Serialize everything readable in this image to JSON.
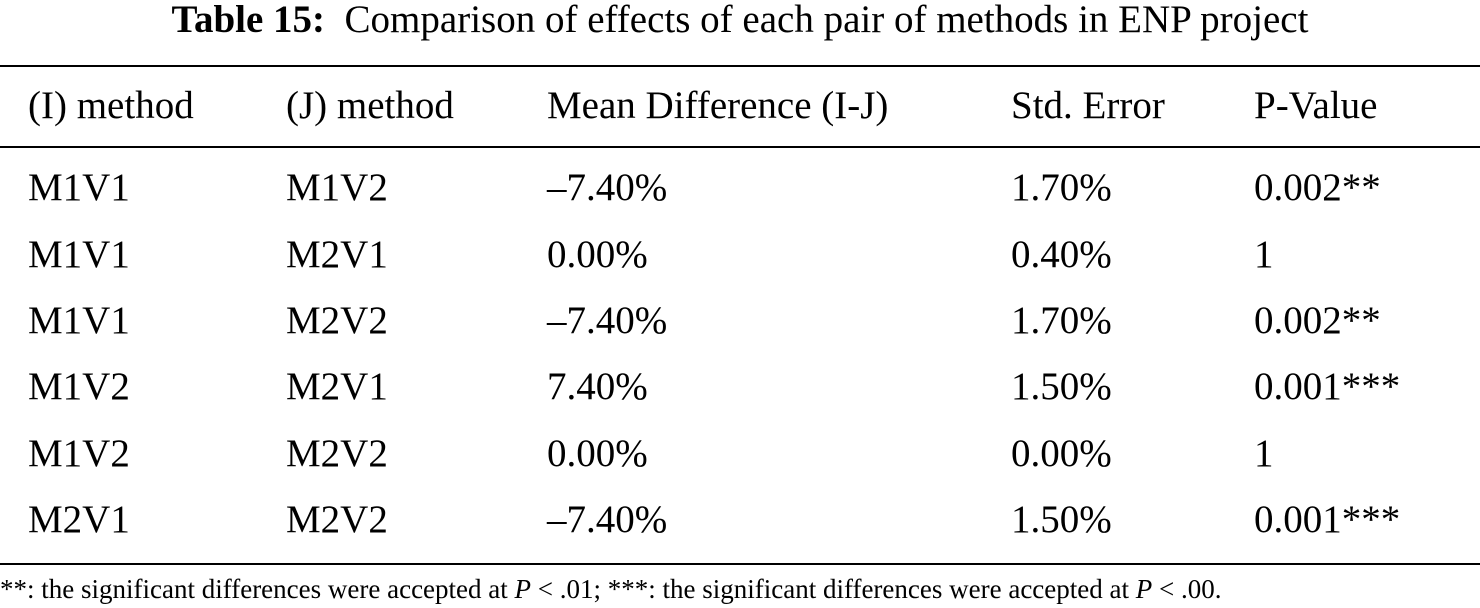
{
  "caption": {
    "label": "Table 15:",
    "text": "Comparison of effects of each pair of methods in ENP project"
  },
  "table": {
    "headers": [
      "(I) method",
      "(J) method",
      "Mean Difference (I-J)",
      "Std. Error",
      "P-Value"
    ],
    "rows": [
      [
        "M1V1",
        "M1V2",
        "–7.40%",
        "1.70%",
        "0.002**"
      ],
      [
        "M1V1",
        "M2V1",
        "0.00%",
        "0.40%",
        "1"
      ],
      [
        "M1V1",
        "M2V2",
        "–7.40%",
        "1.70%",
        "0.002**"
      ],
      [
        "M1V2",
        "M2V1",
        "7.40%",
        "1.50%",
        "0.001***"
      ],
      [
        "M1V2",
        "M2V2",
        "0.00%",
        "0.00%",
        "1"
      ],
      [
        "M2V1",
        "M2V2",
        "–7.40%",
        "1.50%",
        "0.001***"
      ]
    ]
  },
  "footnote": {
    "part1": "**: the significant differences were accepted at ",
    "p1": "P",
    "part2": " < .01; ***: the significant differences were accepted at ",
    "p2": "P",
    "part3": " < .00."
  }
}
